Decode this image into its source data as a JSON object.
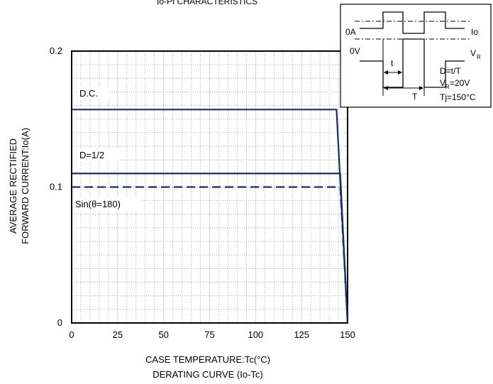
{
  "chart_data": {
    "type": "line",
    "title": "Io-Pf CHARACTERISTICS",
    "subtitle": "DERATING CURVE (Io-Tc)",
    "xlabel": "CASE TEMPERATURE:Tc(°C)",
    "ylabel_line1": "AVERAGE RECTIFIED",
    "ylabel_line2": "FORWARD CURRENT:Io(A)",
    "xlim": [
      0,
      150
    ],
    "ylim": [
      0,
      0.2
    ],
    "x_ticks": [
      0,
      25,
      50,
      75,
      100,
      125,
      150
    ],
    "y_ticks": [
      0,
      0.1,
      0.2
    ],
    "x_tick_labels": [
      "0",
      "25",
      "50",
      "75",
      "100",
      "125",
      "150"
    ],
    "y_tick_labels": [
      "0",
      "0.1",
      "0.2"
    ],
    "grid": true,
    "series": [
      {
        "name": "D.C.",
        "style": "solid",
        "color": "#1f2a6e",
        "x": [
          0,
          144,
          150
        ],
        "y": [
          0.157,
          0.157,
          0
        ]
      },
      {
        "name": "D=1/2",
        "style": "solid",
        "color": "#1f2a6e",
        "x": [
          0,
          146,
          150
        ],
        "y": [
          0.11,
          0.11,
          0
        ]
      },
      {
        "name": "Sin(θ=180)",
        "style": "dashed",
        "color": "#1f2a6e",
        "x": [
          0,
          146,
          150
        ],
        "y": [
          0.1,
          0.1,
          0
        ]
      }
    ],
    "inset": {
      "label_0A": "0A",
      "label_0V": "0V",
      "label_Io": "Io",
      "label_VR": "V",
      "label_VR_sub": "R",
      "label_t": "t",
      "label_T": "T",
      "line1": "D=t/T",
      "line2_a": "V",
      "line2_sub": "R",
      "line2_b": "=20V",
      "line3": "Tj=150°C"
    }
  }
}
